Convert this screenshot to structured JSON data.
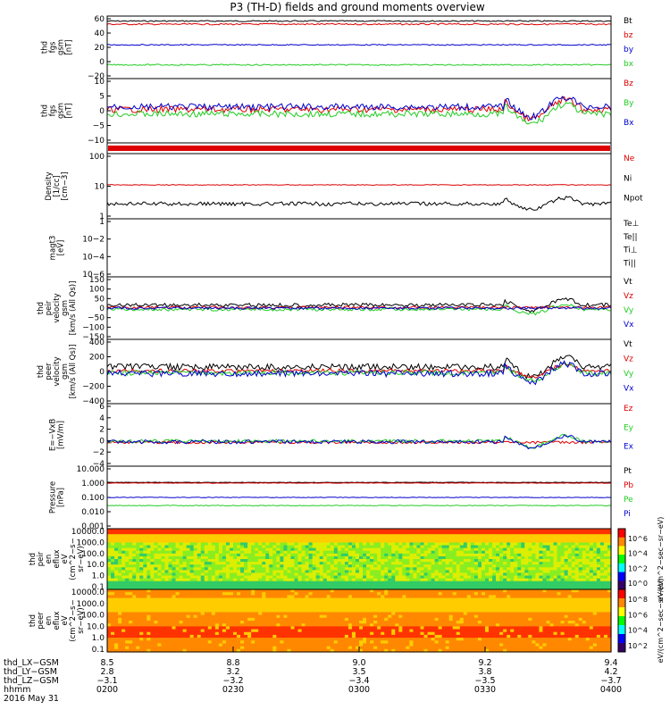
{
  "title": "P3 (TH-D) fields and ground moments overview",
  "colors": {
    "black": "#000000",
    "red": "#dd0000",
    "green": "#22cc22",
    "blue": "#0000cc"
  },
  "chart_data": [
    {
      "type": "line",
      "ylabel": [
        "thd",
        "fgs",
        "gsm",
        "[nT]"
      ],
      "yticks": [
        "60",
        "40",
        "20",
        "0",
        "−20"
      ],
      "legend": [
        "Bt",
        "bz",
        "by",
        "bx"
      ],
      "series": [
        {
          "name": "Bt",
          "color": "black",
          "base": 0.08,
          "noise": 0.01
        },
        {
          "name": "bz",
          "color": "red",
          "base": 0.13,
          "noise": 0.012
        },
        {
          "name": "by",
          "color": "blue",
          "base": 0.46,
          "noise": 0.008
        },
        {
          "name": "bx",
          "color": "green",
          "base": 0.78,
          "noise": 0.01
        }
      ]
    },
    {
      "type": "line",
      "ylabel": [
        "thd",
        "fgs",
        "gsm",
        "[nT]"
      ],
      "yticks": [
        "10",
        "5",
        "0",
        "−5",
        "−10"
      ],
      "legend": [
        "Bz",
        "By",
        "Bx"
      ],
      "series": [
        {
          "name": "Bz",
          "color": "red",
          "base": 0.48,
          "noise": 0.05
        },
        {
          "name": "By",
          "color": "green",
          "base": 0.55,
          "noise": 0.05
        },
        {
          "name": "Bx",
          "color": "blue",
          "base": 0.44,
          "noise": 0.05
        }
      ]
    },
    {
      "type": "line",
      "ylabel": [
        "Density",
        "[1/cc]",
        "[cm−3]"
      ],
      "yticks": [
        "100",
        "10",
        "1"
      ],
      "legend": [
        "Ne",
        "Ni",
        "Npot"
      ],
      "series": [
        {
          "name": "Ne",
          "color": "red",
          "base": 0.48,
          "noise": 0.006
        },
        {
          "name": "Npot",
          "color": "black",
          "base": 0.77,
          "noise": 0.03
        }
      ]
    },
    {
      "type": "line",
      "ylabel": [
        "magt3",
        "[eV]"
      ],
      "yticks": [
        "1",
        "10−2",
        "10−4",
        "10−6"
      ],
      "legend": [
        "Te⊥",
        "Te||",
        "Ti⊥",
        "Ti||"
      ],
      "series": []
    },
    {
      "type": "line",
      "ylabel": [
        "thd",
        "peir",
        "velocity",
        "gsm",
        "[km/s (All Qs)]"
      ],
      "yticks": [
        "150",
        "100",
        "50",
        "0",
        "−50",
        "−100",
        "−150"
      ],
      "legend": [
        "Vt",
        "Vz",
        "Vy",
        "Vx"
      ],
      "series": [
        {
          "name": "Vt",
          "color": "black",
          "base": 0.45,
          "noise": 0.03
        },
        {
          "name": "Vz",
          "color": "red",
          "base": 0.49,
          "noise": 0.02
        },
        {
          "name": "Vy",
          "color": "green",
          "base": 0.52,
          "noise": 0.025
        },
        {
          "name": "Vx",
          "color": "blue",
          "base": 0.5,
          "noise": 0.02
        }
      ]
    },
    {
      "type": "line",
      "ylabel": [
        "thd",
        "peer",
        "velocity",
        "gsm",
        "[km/s (All Qs)]"
      ],
      "yticks": [
        "400",
        "200",
        "0",
        "−200",
        "−400"
      ],
      "legend": [
        "Vt",
        "Vz",
        "Vy",
        "Vx"
      ],
      "series": [
        {
          "name": "Vt",
          "color": "black",
          "base": 0.43,
          "noise": 0.05
        },
        {
          "name": "Vz",
          "color": "red",
          "base": 0.49,
          "noise": 0.03
        },
        {
          "name": "Vy",
          "color": "green",
          "base": 0.52,
          "noise": 0.04
        },
        {
          "name": "Vx",
          "color": "blue",
          "base": 0.53,
          "noise": 0.05
        }
      ]
    },
    {
      "type": "line",
      "ylabel": [
        "E=−VxB",
        "[mV/m]"
      ],
      "yticks": [
        "6",
        "4",
        "2",
        "0",
        "−2",
        "−4"
      ],
      "legend": [
        "Ez",
        "Ey",
        "Ex"
      ],
      "series": [
        {
          "name": "Ez",
          "color": "red",
          "base": 0.62,
          "noise": 0.02
        },
        {
          "name": "Ey",
          "color": "green",
          "base": 0.6,
          "noise": 0.03
        },
        {
          "name": "Ex",
          "color": "blue",
          "base": 0.61,
          "noise": 0.03
        }
      ]
    },
    {
      "type": "line",
      "ylabel": [
        "Pressure",
        "[nPa]"
      ],
      "yticks": [
        "10.000",
        "1.000",
        "0.100",
        "0.010",
        "0.001"
      ],
      "legend": [
        "Pt",
        "Pb",
        "Pe",
        "Pi"
      ],
      "series": [
        {
          "name": "Pt",
          "color": "black",
          "base": 0.26,
          "noise": 0.004
        },
        {
          "name": "Pb",
          "color": "red",
          "base": 0.27,
          "noise": 0.004
        },
        {
          "name": "Pi",
          "color": "blue",
          "base": 0.5,
          "noise": 0.005
        },
        {
          "name": "Pe",
          "color": "green",
          "base": 0.63,
          "noise": 0.006
        }
      ]
    },
    {
      "type": "heatmap",
      "ylabel": [
        "thd",
        "peir",
        "en",
        "eflux",
        "eV",
        "(cm^2−s−",
        "sr−eV)"
      ],
      "yticks": [
        "10000.0",
        "1000.0",
        "100.0",
        "10.0",
        "1.0",
        "0.1"
      ],
      "colorbar_ticks": [
        "10^6",
        "10^4",
        "10^2",
        "10^0"
      ],
      "colorbar_label": "eV/(cm^2−sec−sr−eV)"
    },
    {
      "type": "heatmap",
      "ylabel": [
        "thd",
        "peer",
        "en",
        "eflux",
        "eV",
        "(cm^2−s−",
        "sr−eV)"
      ],
      "yticks": [
        "10000.0",
        "1000.0",
        "100.0",
        "10.0",
        "1.0",
        "0.1"
      ],
      "colorbar_ticks": [
        "10^8",
        "10^6",
        "10^4",
        "10^2"
      ],
      "colorbar_label": "eV/(cm^2−sec−sr−eV)"
    }
  ],
  "xaxis": {
    "labels": [
      "thd_LX−GSM",
      "thd_LY−GSM",
      "thd_LZ−GSM",
      "hhmm",
      "2016 May 31"
    ],
    "columns": [
      [
        "8.5",
        "2.8",
        "−3.1",
        "0200"
      ],
      [
        "8.8",
        "3.2",
        "−3.2",
        "0230"
      ],
      [
        "9.0",
        "3.5",
        "−3.4",
        "0300"
      ],
      [
        "9.2",
        "3.8",
        "−3.5",
        "0330"
      ],
      [
        "9.4",
        "4.2",
        "−3.7",
        "0400"
      ]
    ]
  }
}
